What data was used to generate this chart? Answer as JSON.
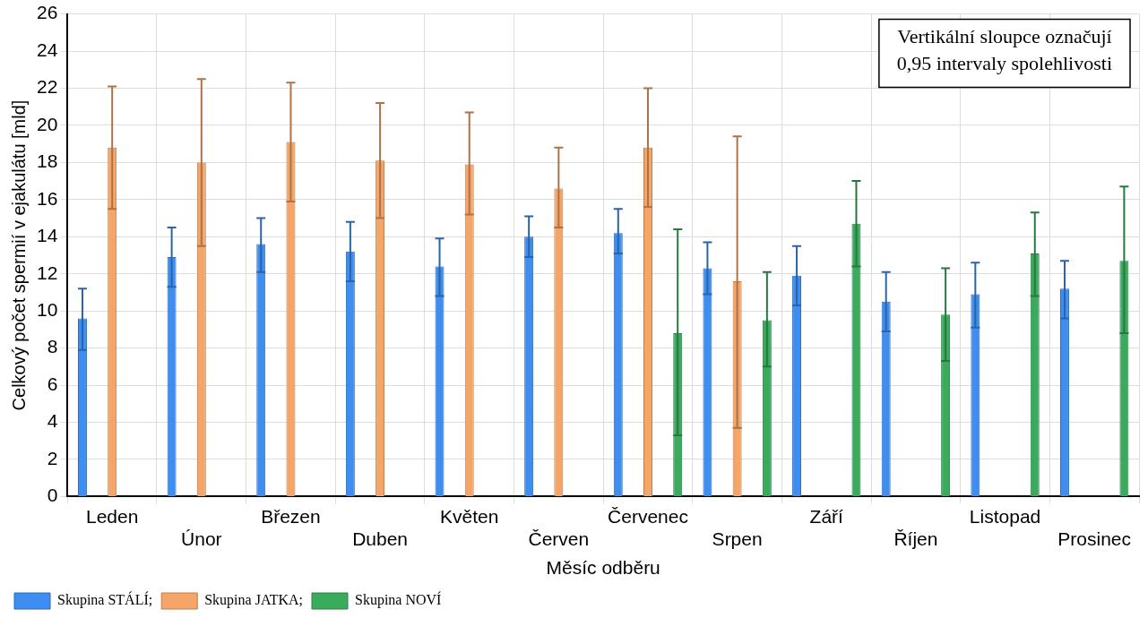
{
  "chart_data": {
    "type": "bar",
    "categories": [
      "Leden",
      "Únor",
      "Březen",
      "Duben",
      "Květen",
      "Červen",
      "Červenec",
      "Srpen",
      "Září",
      "Říjen",
      "Listopad",
      "Prosinec"
    ],
    "xlabel": "Měsíc odběru",
    "ylabel": "Celkový počet spermií v ejakulátu [mld]",
    "ylim": [
      0,
      26
    ],
    "yticks": [
      0,
      2,
      4,
      6,
      8,
      10,
      12,
      14,
      16,
      18,
      20,
      22,
      24,
      26
    ],
    "grid": true,
    "legend": "bottom left",
    "annotations": [
      "Vertikální sloupce označují\n0,95 intervaly spolehlivosti"
    ],
    "series": [
      {
        "name": "Skupina STÁLÍ;",
        "color": "#3d8ef0",
        "values": [
          9.6,
          12.9,
          13.6,
          13.2,
          12.4,
          14.0,
          14.2,
          12.3,
          11.9,
          10.5,
          10.9,
          11.2
        ],
        "errors": [
          [
            7.9,
            11.2
          ],
          [
            11.3,
            14.5
          ],
          [
            12.1,
            15.0
          ],
          [
            11.6,
            14.8
          ],
          [
            10.8,
            13.9
          ],
          [
            12.9,
            15.1
          ],
          [
            13.1,
            15.5
          ],
          [
            10.9,
            13.7
          ],
          [
            10.3,
            13.5
          ],
          [
            8.9,
            12.1
          ],
          [
            9.1,
            12.6
          ],
          [
            9.6,
            12.7
          ]
        ]
      },
      {
        "name": "Skupina JATKA;",
        "color": "#f5a567",
        "values": [
          18.8,
          18.0,
          19.1,
          18.1,
          17.9,
          16.6,
          18.8,
          11.6,
          null,
          null,
          null,
          null
        ],
        "errors": [
          [
            15.5,
            22.1
          ],
          [
            13.5,
            22.5
          ],
          [
            15.9,
            22.3
          ],
          [
            15.0,
            21.2
          ],
          [
            15.2,
            20.7
          ],
          [
            14.5,
            18.8
          ],
          [
            15.6,
            22.0
          ],
          [
            3.7,
            19.4
          ],
          null,
          null,
          null,
          null
        ]
      },
      {
        "name": "Skupina NOVÍ",
        "color": "#3aaa5c",
        "values": [
          null,
          null,
          null,
          null,
          null,
          null,
          8.8,
          9.5,
          14.7,
          9.8,
          13.1,
          12.7
        ],
        "errors": [
          null,
          null,
          null,
          null,
          null,
          null,
          [
            3.3,
            14.4
          ],
          [
            7.0,
            12.1
          ],
          [
            12.4,
            17.0
          ],
          [
            7.3,
            12.3
          ],
          [
            10.8,
            15.3
          ],
          [
            8.8,
            16.7
          ]
        ]
      }
    ]
  }
}
